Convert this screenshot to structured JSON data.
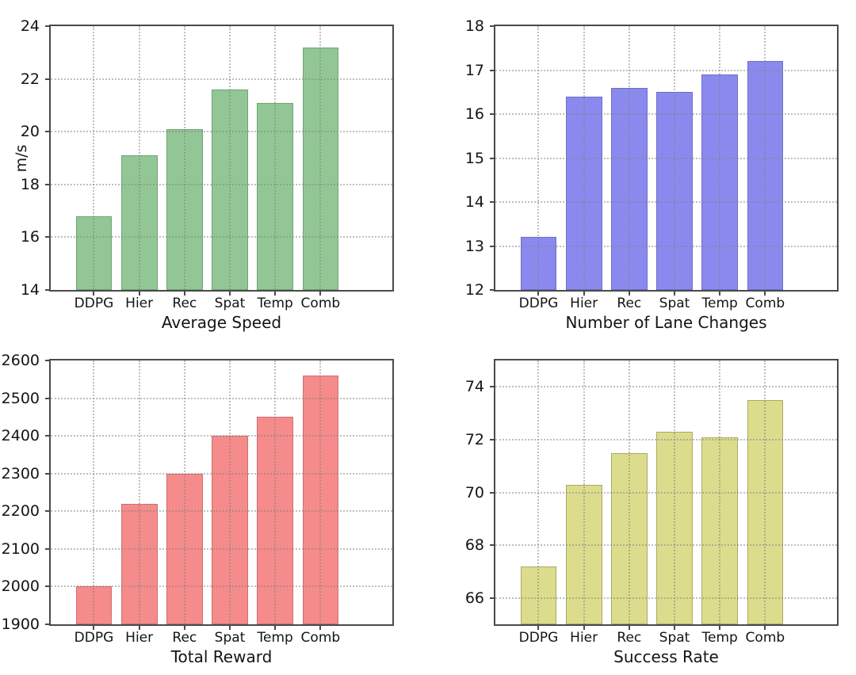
{
  "figure": {
    "background": "#ffffff",
    "grid_style": "dotted",
    "categories_shared": [
      "DDPG",
      "Hier",
      "Rec",
      "Spat",
      "Temp",
      "Comb"
    ]
  },
  "chart_data": [
    {
      "type": "bar",
      "xlabel": "Average Speed",
      "ylabel": "m/s",
      "categories": [
        "DDPG",
        "Hier",
        "Rec",
        "Spat",
        "Temp",
        "Comb"
      ],
      "values": [
        16.8,
        19.1,
        20.1,
        21.6,
        21.1,
        23.2
      ],
      "ylim": [
        14,
        24
      ],
      "yticks": [
        14,
        16,
        18,
        20,
        22,
        24
      ],
      "bar_color": "#92c795",
      "bar_edge_color": "#6fa375",
      "grid": true,
      "legend": "none"
    },
    {
      "type": "bar",
      "xlabel": "Number of Lane Changes",
      "ylabel": "",
      "categories": [
        "DDPG",
        "Hier",
        "Rec",
        "Spat",
        "Temp",
        "Comb"
      ],
      "values": [
        13.2,
        16.4,
        16.6,
        16.5,
        16.9,
        17.2
      ],
      "ylim": [
        12,
        18
      ],
      "yticks": [
        12,
        13,
        14,
        15,
        16,
        17,
        18
      ],
      "bar_color": "#8a8aee",
      "bar_edge_color": "#6e6ec6",
      "grid": true,
      "legend": "none"
    },
    {
      "type": "bar",
      "xlabel": "Total Reward",
      "ylabel": "",
      "categories": [
        "DDPG",
        "Hier",
        "Rec",
        "Spat",
        "Temp",
        "Comb"
      ],
      "values": [
        2000,
        2220,
        2300,
        2400,
        2450,
        2560
      ],
      "ylim": [
        1900,
        2600
      ],
      "yticks": [
        1900,
        2000,
        2100,
        2200,
        2300,
        2400,
        2500,
        2600
      ],
      "bar_color": "#f58b8b",
      "bar_edge_color": "#d26e6e",
      "grid": true,
      "legend": "none"
    },
    {
      "type": "bar",
      "xlabel": "Success Rate",
      "ylabel": "",
      "categories": [
        "DDPG",
        "Hier",
        "Rec",
        "Spat",
        "Temp",
        "Comb"
      ],
      "values": [
        67.2,
        70.3,
        71.5,
        72.3,
        72.1,
        73.5
      ],
      "ylim": [
        65,
        75
      ],
      "yticks": [
        66,
        68,
        70,
        72,
        74
      ],
      "bar_color": "#dcdc8d",
      "bar_edge_color": "#aaaa64",
      "grid": true,
      "legend": "none"
    }
  ]
}
